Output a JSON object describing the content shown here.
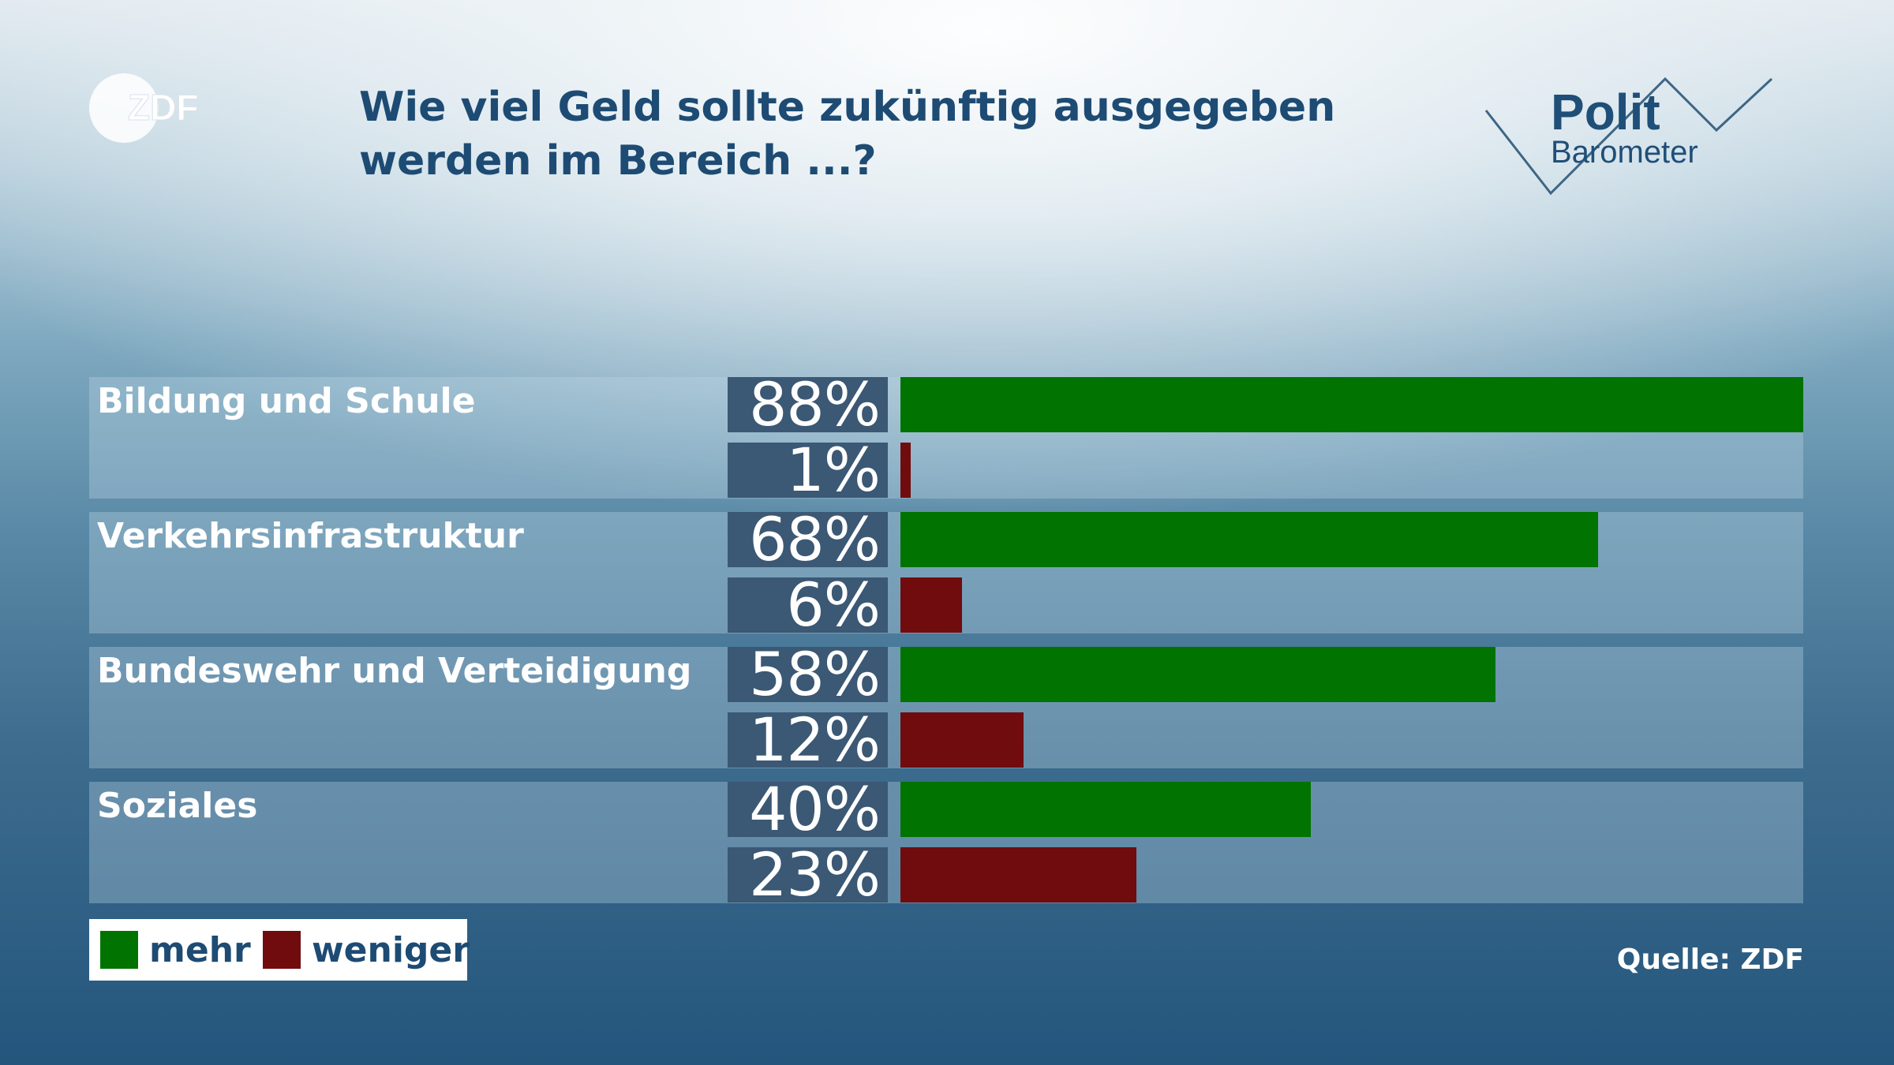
{
  "logo": {
    "text": "ZDF"
  },
  "brand": {
    "polit": "Polit",
    "barometer": "Barometer"
  },
  "title": "Wie viel Geld sollte zukünftig ausgegeben werden im Bereich ...?",
  "source": "Quelle: ZDF",
  "colors": {
    "mehr": "#007300",
    "weniger": "#700c0e",
    "title": "#1d4b73",
    "percent_box": "#3b5874"
  },
  "chart_data": {
    "type": "bar",
    "orientation": "horizontal",
    "title": "Wie viel Geld sollte zukünftig ausgegeben werden im Bereich ...?",
    "categories": [
      "Bildung und Schule",
      "Verkehrsinfrastruktur",
      "Bundeswehr und Verteidigung",
      "Soziales"
    ],
    "series": [
      {
        "name": "mehr",
        "values": [
          88,
          68,
          58,
          40
        ],
        "labels": [
          "88%",
          "68%",
          "58%",
          "40%"
        ]
      },
      {
        "name": "weniger",
        "values": [
          1,
          6,
          12,
          23
        ],
        "labels": [
          "1%",
          "6%",
          "12%",
          "23%"
        ]
      }
    ],
    "xlim": [
      0,
      88
    ],
    "unit": "%",
    "legend_position": "bottom-left",
    "grid": false
  }
}
